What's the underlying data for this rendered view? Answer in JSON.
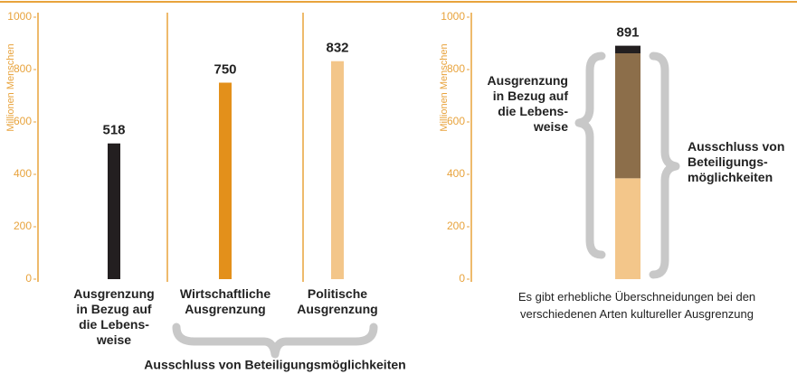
{
  "chart_data": [
    {
      "type": "bar",
      "y_label": "Millionen Menschen",
      "categories": [
        "Ausgrenzung\nin Bezug auf\ndie Lebens-\nweise",
        "Wirtschaftliche\nAusgrenzung",
        "Politische\nAusgrenzung"
      ],
      "values": [
        518,
        750,
        832
      ],
      "colors": [
        "#231f20",
        "#e3901b",
        "#f3c68a"
      ],
      "ylim": [
        0,
        1000
      ],
      "yticks": [
        0,
        200,
        400,
        600,
        800,
        1000
      ],
      "annotation": "Ausschluss von Beteiligungsmöglichkeiten"
    },
    {
      "type": "stacked_bar",
      "y_label": "Millionen Menschen",
      "segments": [
        {
          "value": 385,
          "color": "#f3c68a"
        },
        {
          "value": 477,
          "color": "#8c6e4a"
        },
        {
          "value": 29,
          "color": "#231f20"
        }
      ],
      "total": 891,
      "ylim": [
        0,
        1000
      ],
      "yticks": [
        0,
        200,
        400,
        600,
        800,
        1000
      ],
      "annotations": [
        "Ausgrenzung\nin Bezug auf\ndie Lebens-\nweise",
        "Ausschluss von\nBeteiligungs-\nmöglichkeiten"
      ],
      "note": "Es gibt erhebliche Überschneidungen bei den\nverschiedenen Arten kultureller Ausgrenzung"
    }
  ]
}
